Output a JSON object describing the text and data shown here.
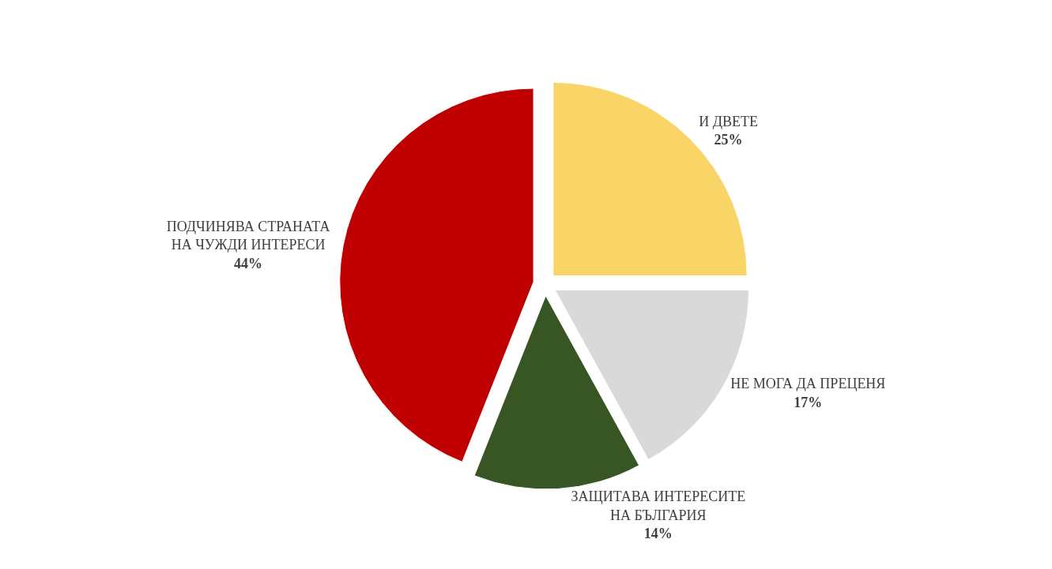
{
  "chart_data": {
    "type": "pie",
    "categories": [
      "И ДВЕТЕ",
      "НЕ МОГА ДА ПРЕЦЕНЯ",
      "ЗАЩИТАВА ИНТЕРЕСИТЕ НА БЪЛГАРИЯ",
      "ПОДЧИНЯВА СТРАНАТА НА ЧУЖДИ ИНТЕРЕСИ"
    ],
    "values": [
      25,
      17,
      14,
      44
    ],
    "value_labels": [
      "25%",
      "17%",
      "14%",
      "44%"
    ],
    "colors": [
      "#f9d466",
      "#d9d9d9",
      "#375623",
      "#c00000"
    ],
    "legend": false
  }
}
